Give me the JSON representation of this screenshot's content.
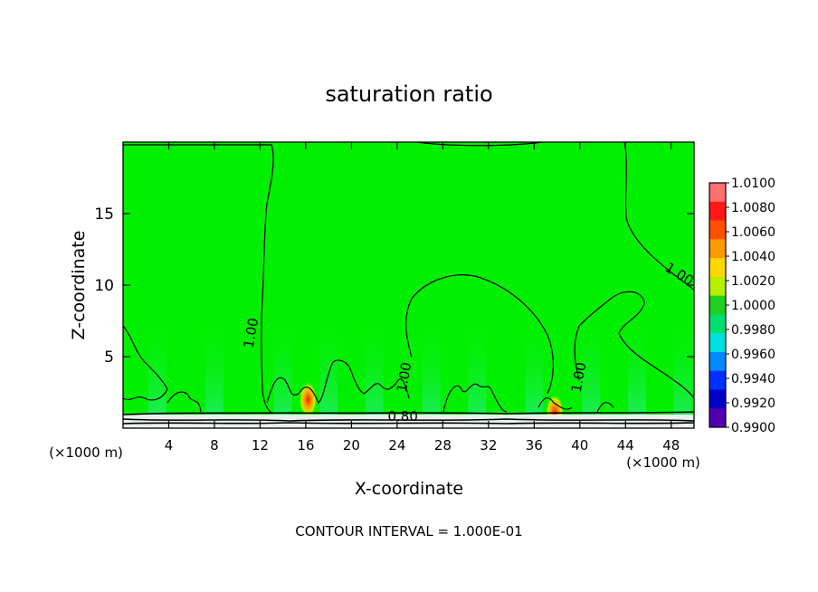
{
  "chart_data": {
    "type": "heatmap",
    "title": "saturation ratio",
    "xlabel": "X-coordinate",
    "ylabel": "Z-coordinate",
    "x_unit_left": "(×1000 m)",
    "x_unit_right": "(×1000 m)",
    "xlim": [
      0,
      50
    ],
    "ylim": [
      0,
      20
    ],
    "x_ticks": [
      4,
      8,
      12,
      16,
      20,
      24,
      28,
      32,
      36,
      40,
      44,
      48
    ],
    "y_ticks": [
      5,
      10,
      15
    ],
    "footer": "CONTOUR INTERVAL = 1.000E-01",
    "contour_labels": [
      {
        "text": "1.00",
        "x": 11.6,
        "z": 6.6,
        "angle": -80
      },
      {
        "text": "1.00",
        "x": 25.0,
        "z": 3.5,
        "angle": -80
      },
      {
        "text": "1.00",
        "x": 40.3,
        "z": 3.5,
        "angle": -80
      },
      {
        "text": "1.00",
        "x": 48.5,
        "z": 10.5,
        "angle": 32
      },
      {
        "text": "0.80",
        "x": 24.5,
        "z": 0.5,
        "angle": 0
      }
    ],
    "colorbar": {
      "labels": [
        "1.0100",
        "1.0080",
        "1.0060",
        "1.0040",
        "1.0020",
        "1.0000",
        "0.9980",
        "0.9960",
        "0.9940",
        "0.9920",
        "0.9900"
      ],
      "colors": [
        "#ff7070",
        "#ff1818",
        "#ff5000",
        "#ff9a00",
        "#ffd800",
        "#b4f000",
        "#20d020",
        "#00e070",
        "#00e0e0",
        "#0088ff",
        "#0030ff",
        "#0000c8",
        "#5000b0"
      ]
    },
    "background_value": 1.0,
    "hotspots": [
      {
        "x": 16.2,
        "z": 2.0,
        "value": 1.006
      },
      {
        "x": 37.8,
        "z": 1.1,
        "value": 1.006
      }
    ]
  }
}
